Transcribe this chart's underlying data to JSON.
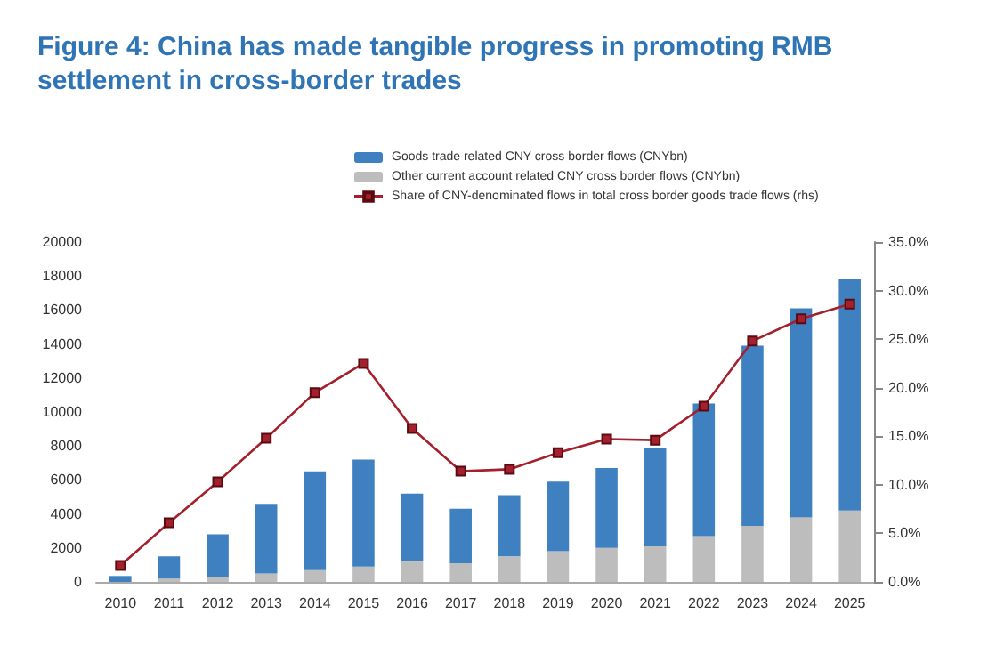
{
  "chart_data": {
    "type": "bar",
    "title": "Figure 4: China has made tangible progress in promoting RMB settlement in cross-border trades",
    "categories": [
      "2010",
      "2011",
      "2012",
      "2013",
      "2014",
      "2015",
      "2016",
      "2017",
      "2018",
      "2019",
      "2020",
      "2021",
      "2022",
      "2023",
      "2024",
      "2025"
    ],
    "stacked": true,
    "series": [
      {
        "name": "Other current account related CNY cross border flows (CNYbn)",
        "color": "#bdbdbd",
        "values": [
          null,
          200,
          300,
          500,
          700,
          900,
          1200,
          1100,
          1500,
          1800,
          2000,
          2100,
          2700,
          3300,
          3800,
          4200
        ]
      },
      {
        "name": "Goods trade related CNY cross border flows (CNYbn)",
        "color": "#3f80c1",
        "values": [
          350,
          1300,
          2500,
          4100,
          5800,
          6300,
          4000,
          3200,
          3600,
          4100,
          4700,
          5800,
          7800,
          10600,
          12300,
          13600
        ]
      },
      {
        "name": "Share of CNY-denominated flows in total cross border goods trade flows (rhs)",
        "type": "line",
        "axis": "y2",
        "color": "#a3202c",
        "marker": "square",
        "values": [
          1.7,
          6.1,
          10.3,
          14.8,
          19.5,
          22.5,
          15.8,
          11.4,
          11.6,
          13.3,
          14.7,
          14.6,
          18.1,
          24.8,
          27.1,
          28.6
        ]
      }
    ],
    "ylim": [
      0,
      20000
    ],
    "yticks": [
      0,
      2000,
      4000,
      6000,
      8000,
      10000,
      12000,
      14000,
      16000,
      18000,
      20000
    ],
    "y2lim": [
      0,
      35
    ],
    "y2ticks": [
      {
        "value": 0,
        "label": "0.0%"
      },
      {
        "value": 5,
        "label": "5.0%"
      },
      {
        "value": 10,
        "label": "10.0%"
      },
      {
        "value": 15,
        "label": "15.0%"
      },
      {
        "value": 20,
        "label": "20.0%"
      },
      {
        "value": 25,
        "label": "25.0%"
      },
      {
        "value": 30,
        "label": "30.0%"
      },
      {
        "value": 35,
        "label": "35.0%"
      }
    ],
    "legend": "top",
    "grid": false
  }
}
